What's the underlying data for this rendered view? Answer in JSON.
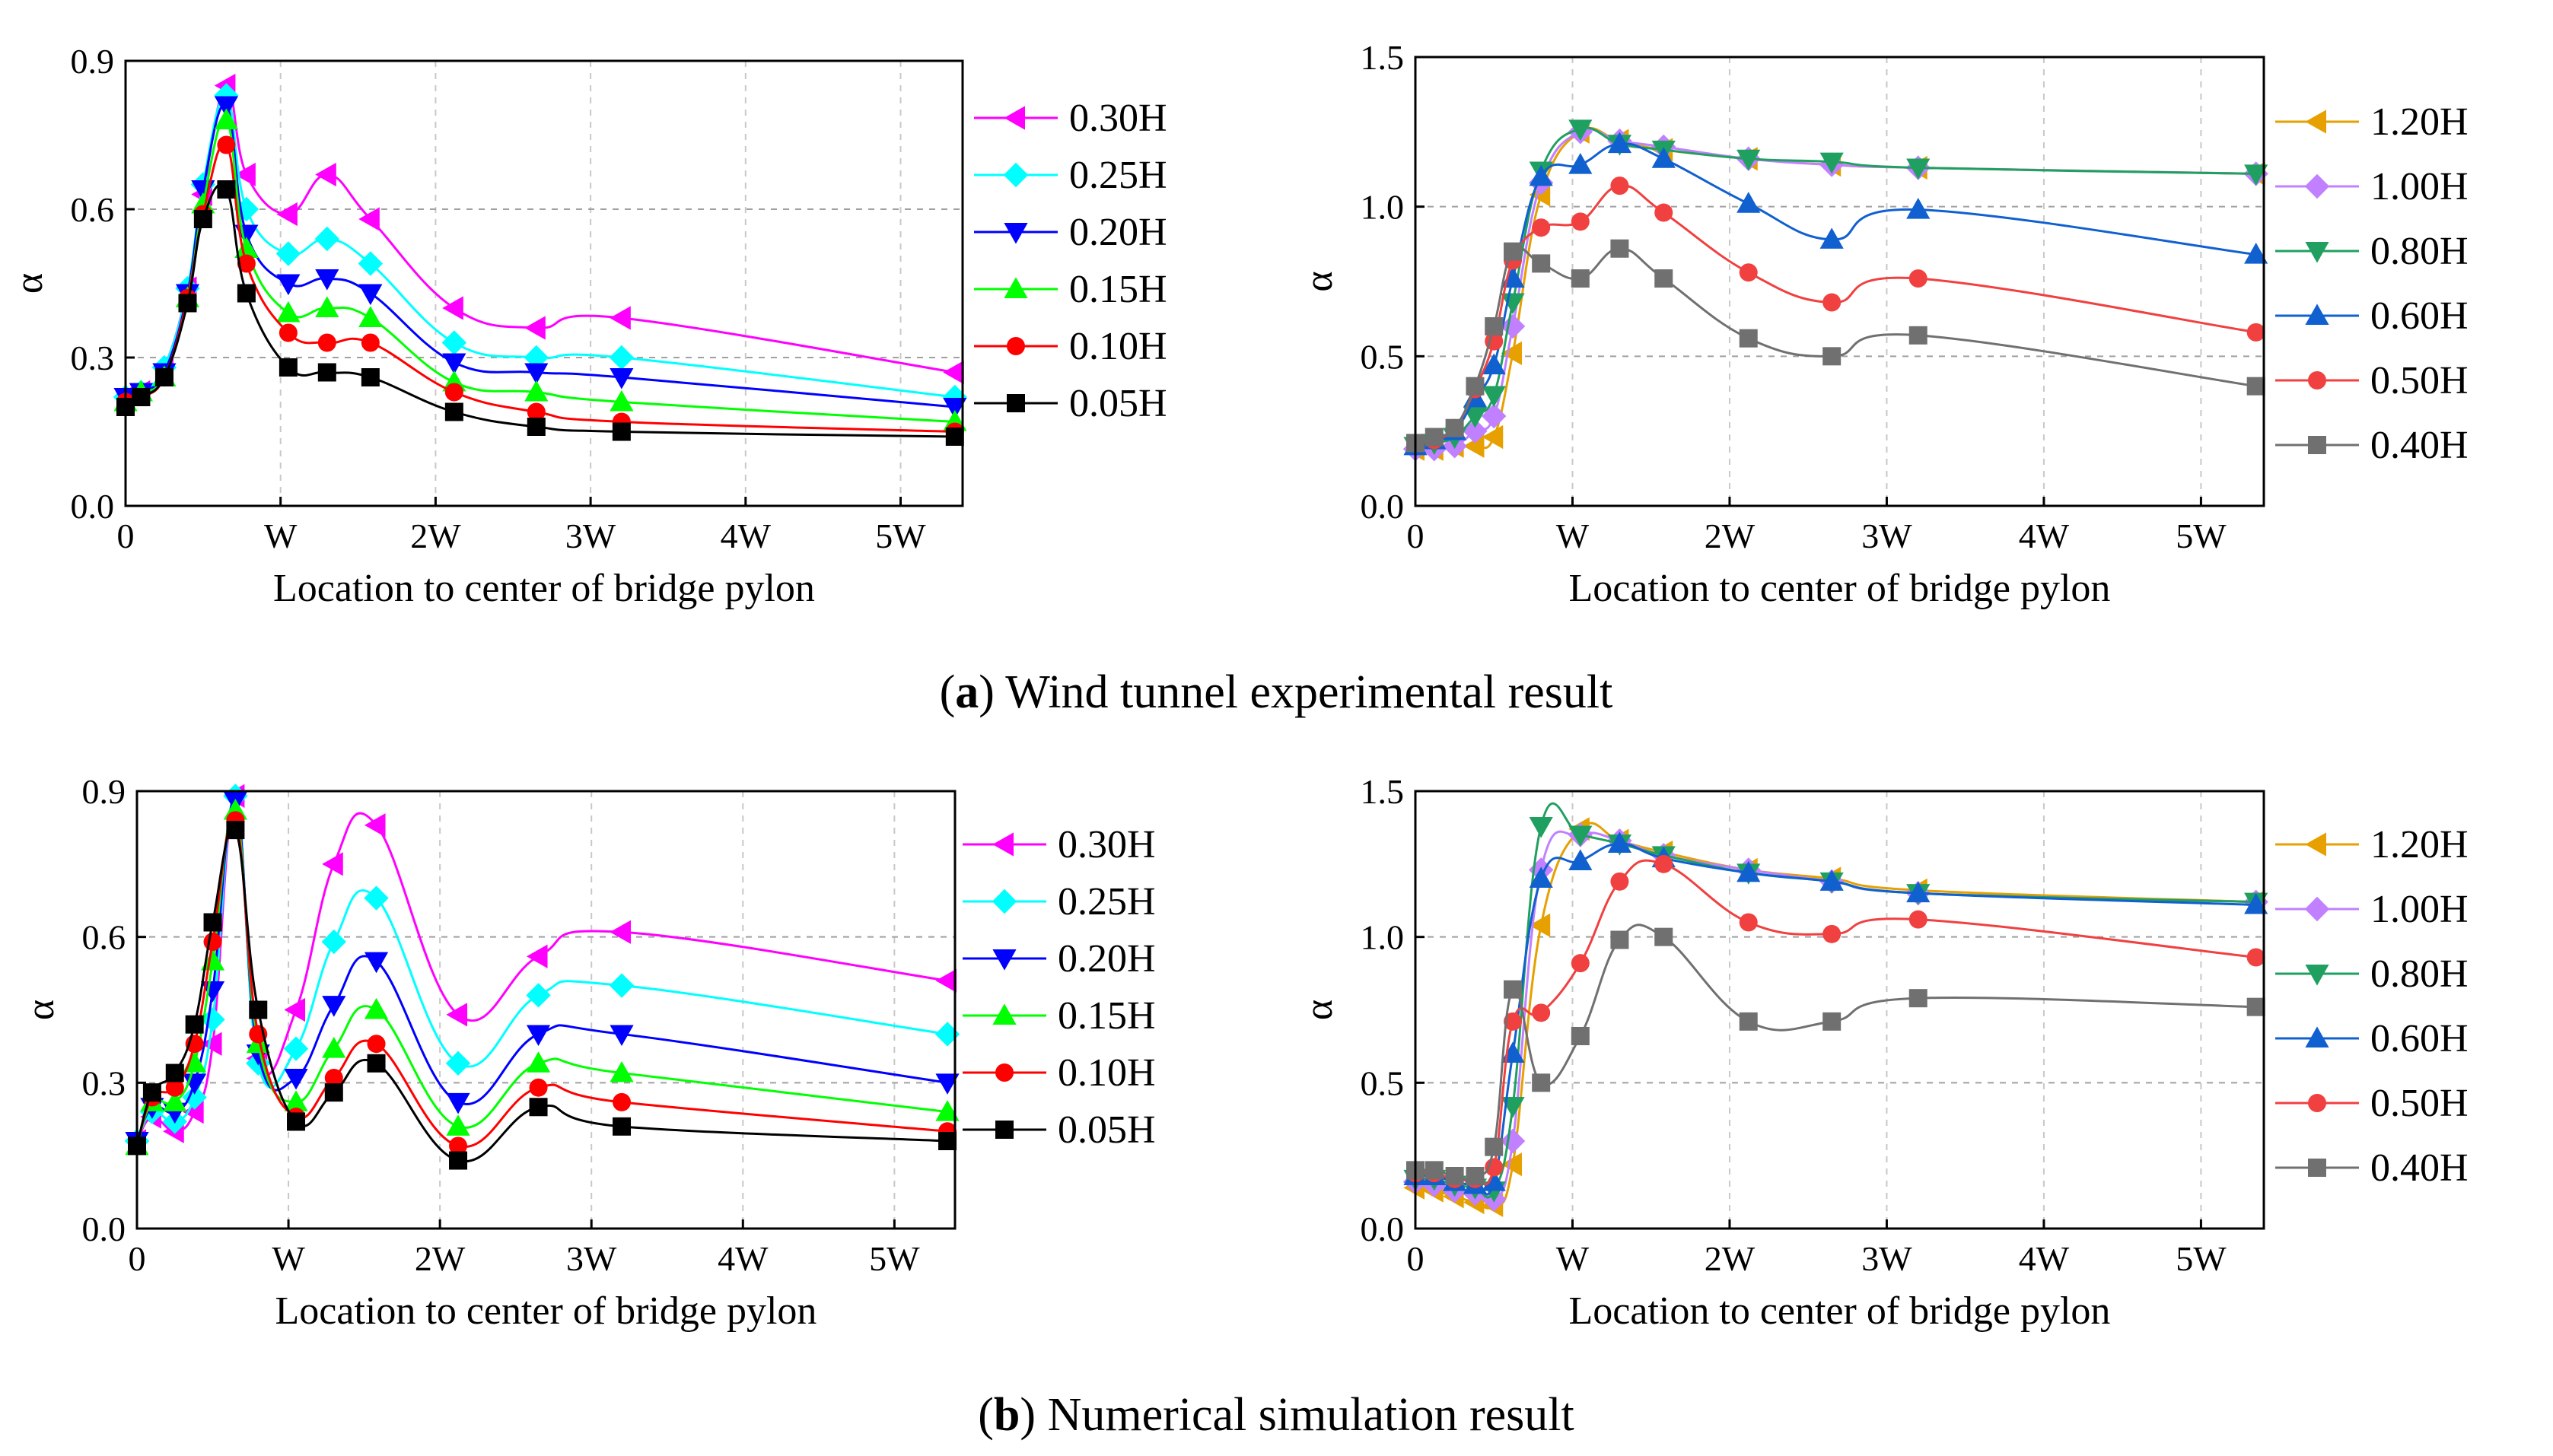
{
  "captions": {
    "a_letter": "a",
    "a_text": " Wind tunnel experimental result",
    "b_letter": "b",
    "b_text": " Numerical simulation result"
  },
  "chart_data": [
    {
      "type": "line",
      "panel": "a-left",
      "xlabel": "Location to center of bridge pylon",
      "ylabel": "α",
      "xlim": [
        0,
        5.4
      ],
      "ylim": [
        0,
        0.9
      ],
      "xticks": [
        {
          "v": 0,
          "label": "0"
        },
        {
          "v": 1,
          "label": "W"
        },
        {
          "v": 2,
          "label": "2W"
        },
        {
          "v": 3,
          "label": "3W"
        },
        {
          "v": 4,
          "label": "4W"
        },
        {
          "v": 5,
          "label": "5W"
        }
      ],
      "yticks": [
        {
          "v": 0,
          "label": "0.0"
        },
        {
          "v": 0.3,
          "label": "0.3"
        },
        {
          "v": 0.6,
          "label": "0.6"
        },
        {
          "v": 0.9,
          "label": "0.9"
        }
      ],
      "grid": true,
      "x": [
        0,
        0.1,
        0.25,
        0.4,
        0.5,
        0.65,
        0.78,
        1.05,
        1.3,
        1.58,
        2.12,
        2.65,
        3.2,
        5.35
      ],
      "series": [
        {
          "name": "0.30H",
          "color": "#ff00ff",
          "marker": "tri-left",
          "values": [
            0.22,
            0.23,
            0.28,
            0.44,
            0.63,
            0.85,
            0.67,
            0.59,
            0.67,
            0.58,
            0.4,
            0.36,
            0.38,
            0.27
          ]
        },
        {
          "name": "0.25H",
          "color": "#00ffff",
          "marker": "diamond",
          "values": [
            0.22,
            0.23,
            0.28,
            0.44,
            0.65,
            0.83,
            0.6,
            0.51,
            0.54,
            0.49,
            0.33,
            0.3,
            0.3,
            0.22
          ]
        },
        {
          "name": "0.20H",
          "color": "#0000ff",
          "marker": "tri-down",
          "values": [
            0.22,
            0.23,
            0.27,
            0.43,
            0.64,
            0.81,
            0.55,
            0.45,
            0.46,
            0.43,
            0.29,
            0.27,
            0.26,
            0.2
          ]
        },
        {
          "name": "0.15H",
          "color": "#00ff00",
          "marker": "tri-up",
          "values": [
            0.21,
            0.23,
            0.26,
            0.42,
            0.61,
            0.78,
            0.52,
            0.39,
            0.4,
            0.38,
            0.25,
            0.23,
            0.21,
            0.17
          ]
        },
        {
          "name": "0.10H",
          "color": "#ff0000",
          "marker": "circle",
          "values": [
            0.21,
            0.22,
            0.26,
            0.42,
            0.59,
            0.73,
            0.49,
            0.35,
            0.33,
            0.33,
            0.23,
            0.19,
            0.17,
            0.15
          ]
        },
        {
          "name": "0.05H",
          "color": "#000000",
          "marker": "square",
          "values": [
            0.2,
            0.22,
            0.26,
            0.41,
            0.58,
            0.64,
            0.43,
            0.28,
            0.27,
            0.26,
            0.19,
            0.16,
            0.15,
            0.14
          ]
        }
      ]
    },
    {
      "type": "line",
      "panel": "a-right",
      "xlabel": "Location to center of bridge pylon",
      "ylabel": "α",
      "xlim": [
        0,
        5.4
      ],
      "ylim": [
        0,
        1.5
      ],
      "xticks": [
        {
          "v": 0,
          "label": "0"
        },
        {
          "v": 1,
          "label": "W"
        },
        {
          "v": 2,
          "label": "2W"
        },
        {
          "v": 3,
          "label": "3W"
        },
        {
          "v": 4,
          "label": "4W"
        },
        {
          "v": 5,
          "label": "5W"
        }
      ],
      "yticks": [
        {
          "v": 0,
          "label": "0.0"
        },
        {
          "v": 0.5,
          "label": "0.5"
        },
        {
          "v": 1.0,
          "label": "1.0"
        },
        {
          "v": 1.5,
          "label": "1.5"
        }
      ],
      "grid": true,
      "x": [
        0,
        0.12,
        0.25,
        0.38,
        0.5,
        0.62,
        0.8,
        1.05,
        1.3,
        1.58,
        2.12,
        2.65,
        3.2,
        5.35
      ],
      "series": [
        {
          "name": "1.20H",
          "color": "#e6a000",
          "marker": "tri-left",
          "values": [
            0.19,
            0.19,
            0.2,
            0.2,
            0.23,
            0.51,
            1.04,
            1.25,
            1.22,
            1.19,
            1.16,
            1.14,
            1.13,
            1.11
          ]
        },
        {
          "name": "1.00H",
          "color": "#c080ff",
          "marker": "diamond",
          "values": [
            0.19,
            0.19,
            0.2,
            0.25,
            0.3,
            0.6,
            1.08,
            1.25,
            1.22,
            1.2,
            1.16,
            1.14,
            1.13,
            1.11
          ]
        },
        {
          "name": "0.80H",
          "color": "#20a060",
          "marker": "tri-down",
          "values": [
            0.2,
            0.21,
            0.23,
            0.3,
            0.37,
            0.68,
            1.12,
            1.26,
            1.21,
            1.19,
            1.16,
            1.15,
            1.13,
            1.11
          ]
        },
        {
          "name": "0.60H",
          "color": "#1060d0",
          "marker": "tri-up",
          "values": [
            0.2,
            0.22,
            0.25,
            0.36,
            0.47,
            0.76,
            1.1,
            1.14,
            1.21,
            1.16,
            1.01,
            0.89,
            0.99,
            0.84
          ]
        },
        {
          "name": "0.50H",
          "color": "#f04040",
          "marker": "circle",
          "values": [
            0.21,
            0.22,
            0.26,
            0.39,
            0.55,
            0.82,
            0.93,
            0.95,
            1.07,
            0.98,
            0.78,
            0.68,
            0.76,
            0.58
          ]
        },
        {
          "name": "0.40H",
          "color": "#707070",
          "marker": "square",
          "values": [
            0.21,
            0.23,
            0.26,
            0.4,
            0.6,
            0.85,
            0.81,
            0.76,
            0.86,
            0.76,
            0.56,
            0.5,
            0.57,
            0.4
          ]
        }
      ]
    },
    {
      "type": "line",
      "panel": "b-left",
      "xlabel": "Location to center of bridge pylon",
      "ylabel": "α",
      "xlim": [
        0,
        5.4
      ],
      "ylim": [
        0,
        0.9
      ],
      "xticks": [
        {
          "v": 0,
          "label": "0"
        },
        {
          "v": 1,
          "label": "W"
        },
        {
          "v": 2,
          "label": "2W"
        },
        {
          "v": 3,
          "label": "3W"
        },
        {
          "v": 4,
          "label": "4W"
        },
        {
          "v": 5,
          "label": "5W"
        }
      ],
      "yticks": [
        {
          "v": 0,
          "label": "0.0"
        },
        {
          "v": 0.3,
          "label": "0.3"
        },
        {
          "v": 0.6,
          "label": "0.6"
        },
        {
          "v": 0.9,
          "label": "0.9"
        }
      ],
      "grid": true,
      "x": [
        0,
        0.1,
        0.25,
        0.38,
        0.5,
        0.65,
        0.8,
        1.05,
        1.3,
        1.58,
        2.12,
        2.65,
        3.2,
        5.35
      ],
      "series": [
        {
          "name": "0.30H",
          "color": "#ff00ff",
          "marker": "tri-left",
          "values": [
            0.18,
            0.23,
            0.2,
            0.24,
            0.38,
            0.89,
            0.35,
            0.45,
            0.75,
            0.83,
            0.44,
            0.56,
            0.61,
            0.51
          ]
        },
        {
          "name": "0.25H",
          "color": "#00ffff",
          "marker": "diamond",
          "values": [
            0.18,
            0.24,
            0.22,
            0.27,
            0.43,
            0.89,
            0.34,
            0.37,
            0.59,
            0.68,
            0.34,
            0.48,
            0.5,
            0.4
          ]
        },
        {
          "name": "0.20H",
          "color": "#0000ff",
          "marker": "tri-down",
          "values": [
            0.18,
            0.25,
            0.24,
            0.3,
            0.49,
            0.88,
            0.36,
            0.31,
            0.46,
            0.55,
            0.26,
            0.4,
            0.4,
            0.3
          ]
        },
        {
          "name": "0.15H",
          "color": "#00ff00",
          "marker": "tri-up",
          "values": [
            0.17,
            0.26,
            0.26,
            0.34,
            0.55,
            0.86,
            0.38,
            0.26,
            0.37,
            0.45,
            0.21,
            0.34,
            0.32,
            0.24
          ]
        },
        {
          "name": "0.10H",
          "color": "#ff0000",
          "marker": "circle",
          "values": [
            0.17,
            0.27,
            0.29,
            0.38,
            0.59,
            0.84,
            0.4,
            0.23,
            0.31,
            0.38,
            0.17,
            0.29,
            0.26,
            0.2
          ]
        },
        {
          "name": "0.05H",
          "color": "#000000",
          "marker": "square",
          "values": [
            0.17,
            0.28,
            0.32,
            0.42,
            0.63,
            0.82,
            0.45,
            0.22,
            0.28,
            0.34,
            0.14,
            0.25,
            0.21,
            0.18
          ]
        }
      ]
    },
    {
      "type": "line",
      "panel": "b-right",
      "xlabel": "Location to center of bridge pylon",
      "ylabel": "α",
      "xlim": [
        0,
        5.4
      ],
      "ylim": [
        0,
        1.5
      ],
      "xticks": [
        {
          "v": 0,
          "label": "0"
        },
        {
          "v": 1,
          "label": "W"
        },
        {
          "v": 2,
          "label": "2W"
        },
        {
          "v": 3,
          "label": "3W"
        },
        {
          "v": 4,
          "label": "4W"
        },
        {
          "v": 5,
          "label": "5W"
        }
      ],
      "yticks": [
        {
          "v": 0,
          "label": "0.0"
        },
        {
          "v": 0.5,
          "label": "0.5"
        },
        {
          "v": 1.0,
          "label": "1.0"
        },
        {
          "v": 1.5,
          "label": "1.5"
        }
      ],
      "grid": true,
      "x": [
        0,
        0.12,
        0.25,
        0.38,
        0.5,
        0.62,
        0.8,
        1.05,
        1.3,
        1.58,
        2.12,
        2.65,
        3.2,
        5.35
      ],
      "series": [
        {
          "name": "1.20H",
          "color": "#e6a000",
          "marker": "tri-left",
          "values": [
            0.14,
            0.13,
            0.11,
            0.09,
            0.08,
            0.22,
            1.04,
            1.37,
            1.33,
            1.29,
            1.23,
            1.2,
            1.16,
            1.12
          ]
        },
        {
          "name": "1.00H",
          "color": "#c080ff",
          "marker": "diamond",
          "values": [
            0.16,
            0.15,
            0.13,
            0.12,
            0.1,
            0.3,
            1.23,
            1.35,
            1.33,
            1.28,
            1.23,
            1.19,
            1.15,
            1.12
          ]
        },
        {
          "name": "0.80H",
          "color": "#20a060",
          "marker": "tri-down",
          "values": [
            0.17,
            0.17,
            0.15,
            0.14,
            0.13,
            0.42,
            1.38,
            1.35,
            1.32,
            1.28,
            1.22,
            1.19,
            1.15,
            1.12
          ]
        },
        {
          "name": "0.60H",
          "color": "#1060d0",
          "marker": "tri-up",
          "values": [
            0.18,
            0.18,
            0.16,
            0.15,
            0.16,
            0.6,
            1.2,
            1.26,
            1.32,
            1.27,
            1.22,
            1.19,
            1.15,
            1.11
          ]
        },
        {
          "name": "0.50H",
          "color": "#f04040",
          "marker": "circle",
          "values": [
            0.19,
            0.19,
            0.17,
            0.17,
            0.21,
            0.71,
            0.74,
            0.91,
            1.19,
            1.25,
            1.05,
            1.01,
            1.06,
            0.93
          ]
        },
        {
          "name": "0.40H",
          "color": "#707070",
          "marker": "square",
          "values": [
            0.2,
            0.2,
            0.18,
            0.18,
            0.28,
            0.82,
            0.5,
            0.66,
            0.99,
            1.0,
            0.71,
            0.71,
            0.79,
            0.76
          ]
        }
      ]
    }
  ]
}
